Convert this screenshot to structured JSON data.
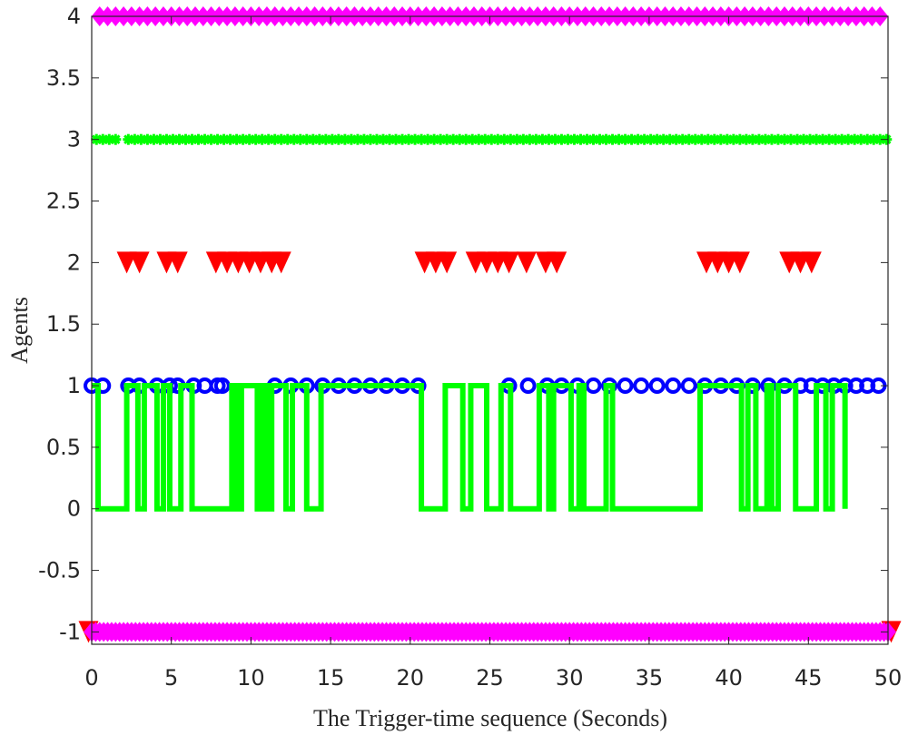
{
  "chart_data": {
    "type": "scatter",
    "title": "",
    "xlabel": "The Trigger-time sequence (Seconds)",
    "ylabel": "Agents",
    "xlim": [
      0,
      50
    ],
    "ylim": [
      -1.1,
      4
    ],
    "xticks": [
      0,
      5,
      10,
      15,
      20,
      25,
      30,
      35,
      40,
      45,
      50
    ],
    "yticks": [
      -1,
      -0.5,
      0,
      0.5,
      1,
      1.5,
      2,
      2.5,
      3,
      3.5,
      4
    ],
    "grid": false,
    "legend": "none",
    "series": [
      {
        "marker": "diamond",
        "color": "#ff00ff",
        "level": 4,
        "x": [
          0.5,
          1,
          1.5,
          2,
          2.5,
          3,
          3.5,
          4,
          4.5,
          5,
          5.5,
          6,
          6.5,
          7,
          7.5,
          8,
          8.5,
          9,
          9.5,
          10,
          10.5,
          11,
          11.5,
          12,
          12.5,
          13,
          13.5,
          14,
          14.5,
          15,
          15.5,
          16,
          16.5,
          17,
          17.5,
          18,
          18.5,
          19,
          19.5,
          20,
          20.5,
          21,
          21.5,
          22,
          22.5,
          23,
          23.5,
          24,
          24.5,
          25,
          25.5,
          26,
          26.5,
          27,
          27.5,
          28,
          28.5,
          29,
          29.5,
          30,
          30.5,
          31,
          31.5,
          32,
          32.5,
          33,
          33.5,
          34,
          34.5,
          35,
          35.5,
          36,
          36.5,
          37,
          37.5,
          38,
          38.5,
          39,
          39.5,
          40,
          40.5,
          41,
          41.5,
          42,
          42.5,
          43,
          43.5,
          44,
          44.5,
          45,
          45.5,
          46,
          46.5,
          47,
          47.5,
          48,
          48.5,
          49,
          49.5
        ]
      },
      {
        "marker": "asterisk",
        "color": "#00ff00",
        "level": 3,
        "x": [
          0.3,
          0.7,
          1.1,
          1.5,
          2.3,
          2.7,
          3.1,
          3.5,
          3.9,
          4.3,
          4.7,
          5.1,
          5.5,
          5.9,
          6.3,
          6.7,
          7.1,
          7.5,
          7.9,
          8.3,
          8.7,
          9.1,
          9.5,
          9.9,
          10.3,
          10.7,
          11.1,
          11.5,
          11.9,
          12.3,
          12.7,
          13.1,
          13.5,
          13.9,
          14.3,
          14.7,
          15.1,
          15.5,
          15.9,
          16.3,
          16.7,
          17.1,
          17.5,
          17.9,
          18.3,
          18.7,
          19.1,
          19.5,
          19.9,
          20.3,
          20.7,
          21.1,
          21.5,
          21.9,
          22.3,
          22.7,
          23.1,
          23.5,
          23.9,
          24.3,
          24.7,
          25.1,
          25.5,
          25.9,
          26.3,
          26.7,
          27.1,
          27.5,
          27.9,
          28.3,
          28.7,
          29.1,
          29.5,
          29.9,
          30.3,
          30.7,
          31.1,
          31.5,
          31.9,
          32.3,
          32.7,
          33.1,
          33.5,
          33.9,
          34.3,
          34.7,
          35.1,
          35.5,
          35.9,
          36.3,
          36.7,
          37.1,
          37.5,
          37.9,
          38.3,
          38.7,
          39.1,
          39.5,
          39.9,
          40.3,
          40.7,
          41.1,
          41.5,
          41.9,
          42.3,
          42.7,
          43.1,
          43.5,
          43.9,
          44.3,
          44.7,
          45.1,
          45.5,
          45.9,
          46.3,
          46.7,
          47.1,
          47.5,
          47.9,
          48.3,
          48.7,
          49.1,
          49.5,
          49.9
        ]
      },
      {
        "marker": "triangle-down",
        "color": "#ff0000",
        "level": 2,
        "x": [
          2.2,
          3,
          4.7,
          5.4,
          7.8,
          8.5,
          9.2,
          9.9,
          10.6,
          11.3,
          11.9,
          20.9,
          21.6,
          22.3,
          24.1,
          24.8,
          25.5,
          26.2,
          27.3,
          28.5,
          29.2,
          38.6,
          39.3,
          40,
          40.7,
          43.8,
          44.5,
          45.2
        ]
      },
      {
        "marker": "circle",
        "color": "#0000ff",
        "level": 1,
        "x": [
          0,
          0.7,
          2.3,
          3,
          4.1,
          4.9,
          5.4,
          6.4,
          7.1,
          7.9,
          8.2,
          11.5,
          12.5,
          13.5,
          14.5,
          15.5,
          16.5,
          17.5,
          18.5,
          19.5,
          20.5,
          26.2,
          27.4,
          28.6,
          29.5,
          30.5,
          31.5,
          32.5,
          33.5,
          34.5,
          35.5,
          36.5,
          37.5,
          38.5,
          39.5,
          40.5,
          41.5,
          42.5,
          43.5,
          44.5,
          45.2,
          45.9,
          46.6,
          47.3,
          48,
          48.7,
          49.4
        ]
      },
      {
        "marker": "step-line",
        "color": "#00ff00",
        "x": [
          0,
          0.4,
          0.4,
          2.2,
          2.2,
          2.9,
          2.9,
          3.3,
          3.3,
          4.1,
          4.1,
          4.5,
          4.5,
          4.9,
          4.9,
          5.6,
          5.6,
          6.3,
          6.3,
          8.8,
          8.8,
          9.1,
          9.1,
          9.4,
          9.4,
          10.4,
          10.4,
          10.7,
          10.7,
          11,
          11,
          11.3,
          11.3,
          12.2,
          12.2,
          12.6,
          12.6,
          13.5,
          13.5,
          14.4,
          14.4,
          20.7,
          20.7,
          22.2,
          22.2,
          23.3,
          23.3,
          23.8,
          23.8,
          24.8,
          24.8,
          25.7,
          25.7,
          26.3,
          26.3,
          28.1,
          28.1,
          28.7,
          28.7,
          29,
          29,
          30.1,
          30.1,
          30.6,
          30.6,
          30.9,
          30.9,
          32.3,
          32.3,
          32.7,
          32.7,
          38.2,
          38.2,
          40.8,
          40.8,
          41.2,
          41.2,
          41.7,
          41.7,
          42.4,
          42.4,
          42.7,
          42.7,
          43.1,
          43.1,
          44.2,
          44.2,
          45.5,
          45.5,
          46.1,
          46.1,
          46.5,
          46.5,
          47.3,
          47.3
        ],
        "y": [
          1,
          1,
          0,
          0,
          1,
          1,
          0,
          0,
          1,
          1,
          0,
          0,
          1,
          1,
          0,
          0,
          1,
          1,
          0,
          0,
          1,
          1,
          0,
          0,
          1,
          1,
          0,
          0,
          1,
          1,
          0,
          0,
          1,
          1,
          0,
          0,
          1,
          1,
          0,
          0,
          1,
          1,
          0,
          0,
          1,
          1,
          0,
          0,
          1,
          1,
          0,
          0,
          1,
          1,
          0,
          0,
          1,
          1,
          0,
          0,
          1,
          1,
          0,
          0,
          1,
          1,
          0,
          0,
          1,
          1,
          0,
          0,
          1,
          1,
          0,
          0,
          1,
          1,
          0,
          0,
          1,
          1,
          0,
          0,
          1,
          1,
          0,
          0,
          1,
          1,
          0,
          0,
          1,
          1,
          0
        ]
      },
      {
        "marker": "triangle-down",
        "color": "#ff0000",
        "level": -1,
        "x": [
          -0.2,
          50.2
        ]
      },
      {
        "marker": "diamond",
        "color": "#ff00ff",
        "level": -1,
        "x": [
          0,
          0.25,
          0.5,
          0.75,
          1,
          1.25,
          1.5,
          1.75,
          2,
          2.25,
          2.5,
          2.75,
          3,
          3.25,
          3.5,
          3.75,
          4,
          4.25,
          4.5,
          4.75,
          5,
          5.25,
          5.5,
          5.75,
          6,
          6.25,
          6.5,
          6.75,
          7,
          7.25,
          7.5,
          7.75,
          8,
          8.25,
          8.5,
          8.75,
          9,
          9.25,
          9.5,
          9.75,
          10,
          10.25,
          10.5,
          10.75,
          11,
          11.25,
          11.5,
          11.75,
          12,
          12.25,
          12.5,
          12.75,
          13,
          13.25,
          13.5,
          13.75,
          14,
          14.25,
          14.5,
          14.75,
          15,
          15.25,
          15.5,
          15.75,
          16,
          16.25,
          16.5,
          16.75,
          17,
          17.25,
          17.5,
          17.75,
          18,
          18.25,
          18.5,
          18.75,
          19,
          19.25,
          19.5,
          19.75,
          20,
          20.25,
          20.5,
          20.75,
          21,
          21.25,
          21.5,
          21.75,
          22,
          22.25,
          22.5,
          22.75,
          23,
          23.25,
          23.5,
          23.75,
          24,
          24.25,
          24.5,
          24.75,
          25,
          25.25,
          25.5,
          25.75,
          26,
          26.25,
          26.5,
          26.75,
          27,
          27.25,
          27.5,
          27.75,
          28,
          28.25,
          28.5,
          28.75,
          29,
          29.25,
          29.5,
          29.75,
          30,
          30.25,
          30.5,
          30.75,
          31,
          31.25,
          31.5,
          31.75,
          32,
          32.25,
          32.5,
          32.75,
          33,
          33.25,
          33.5,
          33.75,
          34,
          34.25,
          34.5,
          34.75,
          35,
          35.25,
          35.5,
          35.75,
          36,
          36.25,
          36.5,
          36.75,
          37,
          37.25,
          37.5,
          37.75,
          38,
          38.25,
          38.5,
          38.75,
          39,
          39.25,
          39.5,
          39.75,
          40,
          40.25,
          40.5,
          40.75,
          41,
          41.25,
          41.5,
          41.75,
          42,
          42.25,
          42.5,
          42.75,
          43,
          43.25,
          43.5,
          43.75,
          44,
          44.25,
          44.5,
          44.75,
          45,
          45.25,
          45.5,
          45.75,
          46,
          46.25,
          46.5,
          46.75,
          47,
          47.25,
          47.5,
          47.75,
          48,
          48.25,
          48.5,
          48.75,
          49,
          49.25,
          49.5,
          49.75,
          50
        ]
      }
    ]
  }
}
